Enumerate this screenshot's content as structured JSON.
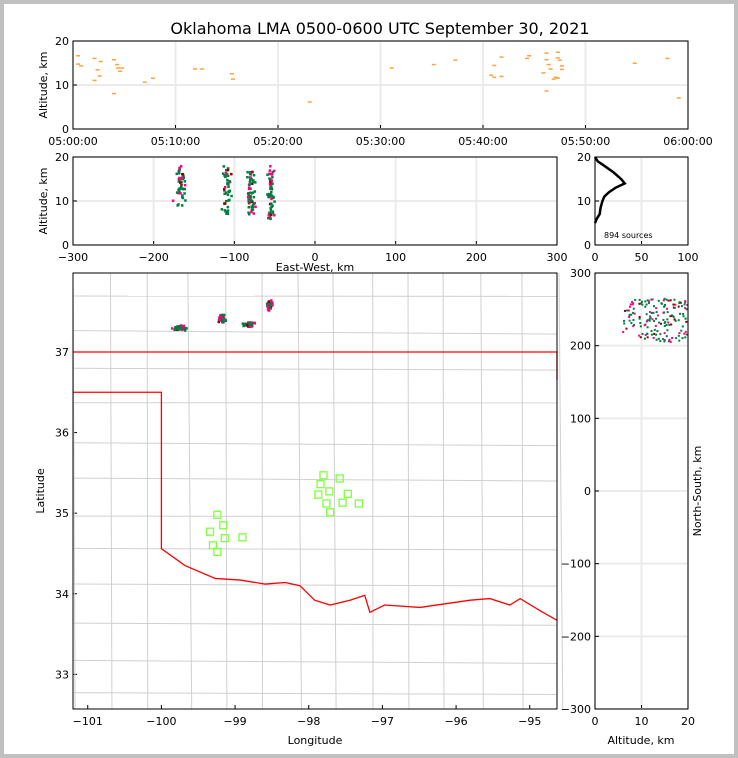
{
  "chart_data": {
    "title": "Oklahoma LMA 0500-0600 UTC September 30, 2021",
    "colors": {
      "time": "#ffa040",
      "green": "#007f3f",
      "magenta": "#ff0080",
      "darkred": "#8b0000",
      "border": "#ff0000",
      "station": "#80ff40",
      "grid": "#ebebeb"
    },
    "panels": [
      {
        "id": "time-altitude",
        "type": "scatter",
        "ylabel": "Altitude, km",
        "ylim": [
          0,
          20
        ],
        "yticks": [
          "0",
          "10",
          "20"
        ],
        "xlim_minutes": [
          0,
          60
        ],
        "xticks": [
          "05:00:00",
          "05:10:00",
          "05:20:00",
          "05:30:00",
          "05:40:00",
          "05:50:00",
          "06:00:00"
        ],
        "points": [
          [
            0.5,
            16.7
          ],
          [
            0.5,
            14.8
          ],
          [
            0.8,
            14.4
          ],
          [
            2.1,
            16.1
          ],
          [
            2.4,
            13.5
          ],
          [
            2.7,
            15.4
          ],
          [
            2.6,
            12.1
          ],
          [
            2.1,
            11.1
          ],
          [
            4,
            15.8
          ],
          [
            4.3,
            14.7
          ],
          [
            4.4,
            13.9
          ],
          [
            4.6,
            13.2
          ],
          [
            4.8,
            13.9
          ],
          [
            4,
            8.1
          ],
          [
            7,
            10.7
          ],
          [
            7.8,
            11.6
          ],
          [
            11.9,
            13.7
          ],
          [
            12.6,
            13.7
          ],
          [
            15.5,
            12.6
          ],
          [
            15.6,
            11.4
          ],
          [
            23.1,
            6.2
          ],
          [
            31.1,
            13.9
          ],
          [
            35.2,
            14.7
          ],
          [
            37.3,
            15.7
          ],
          [
            40.8,
            12.3
          ],
          [
            41.1,
            11.8
          ],
          [
            41.1,
            14.5
          ],
          [
            41.8,
            16.4
          ],
          [
            41.8,
            12
          ],
          [
            44.3,
            16.1
          ],
          [
            44.5,
            16.7
          ],
          [
            45.9,
            12.8
          ],
          [
            46.2,
            17.3
          ],
          [
            46.2,
            15.8
          ],
          [
            46.4,
            14.7
          ],
          [
            46.6,
            13.7
          ],
          [
            46.9,
            11.4
          ],
          [
            47.1,
            11.8
          ],
          [
            47.3,
            17.5
          ],
          [
            47.3,
            16.2
          ],
          [
            47.5,
            15.7
          ],
          [
            47.7,
            13.6
          ],
          [
            47.7,
            14.4
          ],
          [
            47.3,
            11.6
          ],
          [
            46.2,
            8.7
          ],
          [
            54.8,
            15
          ],
          [
            58.0,
            16.1
          ],
          [
            59.1,
            7.1
          ]
        ]
      },
      {
        "id": "ew-altitude",
        "type": "scatter",
        "xlabel": "East-West, km",
        "ylabel": "Altitude, km",
        "xlim": [
          -300,
          300
        ],
        "ylim": [
          0,
          20
        ],
        "xticks": [
          "−300",
          "−200",
          "−100",
          "0",
          "100",
          "200",
          "300"
        ],
        "yticks": [
          "0",
          "10",
          "20"
        ],
        "clusters": [
          {
            "ew": -167,
            "alt": [
              9,
              18
            ],
            "spread_ew": 8,
            "count": 45
          },
          {
            "ew": -110,
            "alt": [
              7,
              18
            ],
            "spread_ew": 6,
            "count": 45
          },
          {
            "ew": -80,
            "alt": [
              7,
              17
            ],
            "spread_ew": 5,
            "count": 60
          },
          {
            "ew": -55,
            "alt": [
              6,
              18
            ],
            "spread_ew": 4,
            "count": 60
          }
        ]
      },
      {
        "id": "altitude-histogram",
        "type": "line",
        "xlim": [
          0,
          100
        ],
        "ylim": [
          0,
          20
        ],
        "xticks": [
          "0",
          "50",
          "100"
        ],
        "yticks": [
          "0",
          "10",
          "20"
        ],
        "annotation": "894 sources",
        "counts": [
          [
            0,
            20
          ],
          [
            3,
            19
          ],
          [
            10,
            18
          ],
          [
            20,
            16.5
          ],
          [
            28,
            15
          ],
          [
            32,
            14
          ],
          [
            22,
            13
          ],
          [
            15,
            12
          ],
          [
            10,
            11
          ],
          [
            8,
            10
          ],
          [
            6,
            8.5
          ],
          [
            5,
            7
          ],
          [
            2,
            6
          ],
          [
            0,
            5
          ]
        ]
      },
      {
        "id": "plan-view",
        "type": "scatter",
        "xlabel": "Longitude",
        "ylabel": "Latitude",
        "xlim": [
          -101.2,
          -94.63
        ],
        "ylim": [
          32.57,
          37.98
        ],
        "xticks": [
          "−101",
          "−100",
          "−99",
          "−98",
          "−97",
          "−96",
          "−95"
        ],
        "xtick_values": [
          -101,
          -100,
          -99,
          -98,
          -97,
          -96,
          -95
        ],
        "yticks": [
          "33",
          "34",
          "35",
          "36",
          "37"
        ],
        "ytick_values": [
          33,
          34,
          35,
          36,
          37
        ],
        "source_clusters": [
          {
            "lon": -99.75,
            "lat": 37.3,
            "spread": [
              0.13,
              0.04
            ],
            "count": 60
          },
          {
            "lon": -99.18,
            "lat": 37.42,
            "spread": [
              0.06,
              0.07
            ],
            "count": 40
          },
          {
            "lon": -98.8,
            "lat": 37.34,
            "spread": [
              0.12,
              0.04
            ],
            "count": 50
          },
          {
            "lon": -98.53,
            "lat": 37.58,
            "spread": [
              0.06,
              0.09
            ],
            "count": 50
          }
        ],
        "stations": [
          [
            -99.24,
            34.98
          ],
          [
            -99.16,
            34.85
          ],
          [
            -99.34,
            34.77
          ],
          [
            -99.14,
            34.69
          ],
          [
            -99.3,
            34.6
          ],
          [
            -99.24,
            34.52
          ],
          [
            -98.9,
            34.7
          ],
          [
            -97.8,
            35.47
          ],
          [
            -97.84,
            35.36
          ],
          [
            -97.87,
            35.23
          ],
          [
            -97.72,
            35.27
          ],
          [
            -97.58,
            35.43
          ],
          [
            -97.76,
            35.12
          ],
          [
            -97.54,
            35.13
          ],
          [
            -97.47,
            35.24
          ],
          [
            -97.71,
            35.01
          ],
          [
            -97.32,
            35.12
          ]
        ],
        "border": [
          [
            [
              -101.2,
              37.0
            ],
            [
              -94.63,
              37.0
            ],
            [
              -94.63,
              36.65
            ]
          ],
          [
            [
              -101.2,
              36.5
            ],
            [
              -100.0,
              36.5
            ],
            [
              -100.0,
              34.56
            ],
            [
              -99.68,
              34.35
            ],
            [
              -99.27,
              34.19
            ],
            [
              -98.93,
              34.17
            ],
            [
              -98.59,
              34.12
            ],
            [
              -98.32,
              34.14
            ],
            [
              -98.12,
              34.1
            ],
            [
              -97.92,
              33.92
            ],
            [
              -97.71,
              33.86
            ],
            [
              -97.44,
              33.92
            ],
            [
              -97.24,
              33.98
            ],
            [
              -97.17,
              33.77
            ],
            [
              -96.97,
              33.86
            ],
            [
              -96.49,
              33.83
            ],
            [
              -95.81,
              33.92
            ],
            [
              -95.54,
              33.94
            ],
            [
              -95.27,
              33.86
            ],
            [
              -95.13,
              33.94
            ],
            [
              -94.86,
              33.79
            ],
            [
              -94.63,
              33.67
            ]
          ]
        ]
      },
      {
        "id": "altitude-ns",
        "type": "scatter",
        "xlabel": "Altitude, km",
        "ylabel": "North-South, km",
        "xlim": [
          0,
          20
        ],
        "ylim": [
          -300,
          300
        ],
        "xticks": [
          "0",
          "10",
          "20"
        ],
        "yticks": [
          "−300",
          "−200",
          "−100",
          "0",
          "100",
          "200",
          "300"
        ],
        "cluster": {
          "alt": [
            6,
            20
          ],
          "ns": [
            205,
            265
          ],
          "count": 160
        }
      }
    ]
  }
}
